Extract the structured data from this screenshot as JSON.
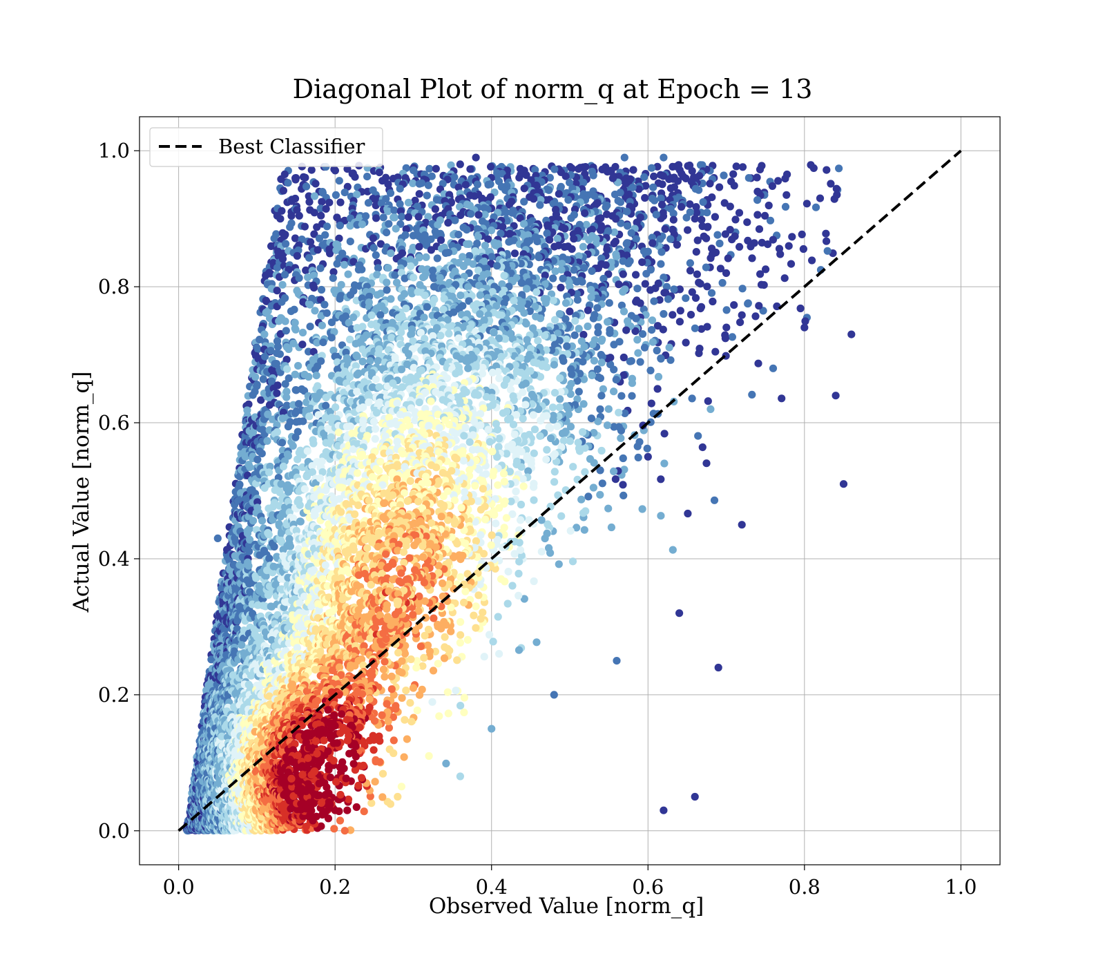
{
  "chart_data": {
    "type": "scatter",
    "title": "Diagonal Plot of norm_q at Epoch = 13",
    "xlabel": "Observed Value [norm_q]",
    "ylabel": "Actual Value [norm_q]",
    "xlim": [
      -0.05,
      1.05
    ],
    "ylim": [
      -0.05,
      1.05
    ],
    "xticks": [
      0.0,
      0.2,
      0.4,
      0.6,
      0.8,
      1.0
    ],
    "yticks": [
      0.0,
      0.2,
      0.4,
      0.6,
      0.8,
      1.0
    ],
    "xtick_labels": [
      "0.0",
      "0.2",
      "0.4",
      "0.6",
      "0.8",
      "1.0"
    ],
    "ytick_labels": [
      "0.0",
      "0.2",
      "0.4",
      "0.6",
      "0.8",
      "1.0"
    ],
    "grid": true,
    "legend": {
      "position": "top-left",
      "entries": [
        {
          "label": "Best Classifier",
          "style": "dashed",
          "color": "#000000"
        }
      ]
    },
    "reference_line": {
      "name": "Best Classifier",
      "x": [
        0.0,
        1.0
      ],
      "y": [
        0.0,
        1.0
      ],
      "color": "#000000",
      "style": "dashed"
    },
    "colormap": [
      "#313695",
      "#4575b4",
      "#74add1",
      "#abd9e9",
      "#e0f3f8",
      "#ffffbf",
      "#fee090",
      "#fdae61",
      "#f46d43",
      "#d73027",
      "#a50026"
    ],
    "colormap_name": "RdYlBu_r (point density)",
    "points": [
      {
        "x": 0.02,
        "y": 0.01
      },
      {
        "x": 0.04,
        "y": 0.03
      },
      {
        "x": 0.05,
        "y": 0.08
      },
      {
        "x": 0.07,
        "y": 0.02
      },
      {
        "x": 0.08,
        "y": 0.12
      },
      {
        "x": 0.1,
        "y": 0.05
      },
      {
        "x": 0.11,
        "y": 0.18
      },
      {
        "x": 0.12,
        "y": 0.09
      },
      {
        "x": 0.13,
        "y": 0.02
      },
      {
        "x": 0.14,
        "y": 0.22
      },
      {
        "x": 0.15,
        "y": 0.14
      },
      {
        "x": 0.16,
        "y": 0.06
      },
      {
        "x": 0.17,
        "y": 0.3
      },
      {
        "x": 0.18,
        "y": 0.1
      },
      {
        "x": 0.19,
        "y": 0.19
      },
      {
        "x": 0.2,
        "y": 0.03
      },
      {
        "x": 0.21,
        "y": 0.36
      },
      {
        "x": 0.22,
        "y": 0.13
      },
      {
        "x": 0.23,
        "y": 0.25
      },
      {
        "x": 0.24,
        "y": 0.07
      },
      {
        "x": 0.25,
        "y": 0.44
      },
      {
        "x": 0.26,
        "y": 0.17
      },
      {
        "x": 0.27,
        "y": 0.31
      },
      {
        "x": 0.28,
        "y": 0.05
      },
      {
        "x": 0.29,
        "y": 0.52
      },
      {
        "x": 0.3,
        "y": 0.21
      },
      {
        "x": 0.31,
        "y": 0.38
      },
      {
        "x": 0.32,
        "y": 0.11
      },
      {
        "x": 0.33,
        "y": 0.6
      },
      {
        "x": 0.34,
        "y": 0.27
      },
      {
        "x": 0.35,
        "y": 0.46
      },
      {
        "x": 0.36,
        "y": 0.08
      },
      {
        "x": 0.37,
        "y": 0.68
      },
      {
        "x": 0.38,
        "y": 0.33
      },
      {
        "x": 0.39,
        "y": 0.55
      },
      {
        "x": 0.4,
        "y": 0.15
      },
      {
        "x": 0.42,
        "y": 0.74
      },
      {
        "x": 0.44,
        "y": 0.4
      },
      {
        "x": 0.46,
        "y": 0.62
      },
      {
        "x": 0.48,
        "y": 0.2
      },
      {
        "x": 0.5,
        "y": 0.8
      },
      {
        "x": 0.52,
        "y": 0.47
      },
      {
        "x": 0.54,
        "y": 0.7
      },
      {
        "x": 0.56,
        "y": 0.25
      },
      {
        "x": 0.58,
        "y": 0.86
      },
      {
        "x": 0.6,
        "y": 0.55
      },
      {
        "x": 0.62,
        "y": 0.76
      },
      {
        "x": 0.64,
        "y": 0.32
      },
      {
        "x": 0.66,
        "y": 0.9
      },
      {
        "x": 0.68,
        "y": 0.62
      },
      {
        "x": 0.7,
        "y": 0.82
      },
      {
        "x": 0.72,
        "y": 0.45
      },
      {
        "x": 0.74,
        "y": 0.94
      },
      {
        "x": 0.76,
        "y": 0.68
      },
      {
        "x": 0.78,
        "y": 0.86
      },
      {
        "x": 0.8,
        "y": 0.74
      },
      {
        "x": 0.82,
        "y": 0.93
      },
      {
        "x": 0.84,
        "y": 0.64
      },
      {
        "x": 0.85,
        "y": 0.51
      },
      {
        "x": 0.86,
        "y": 0.73
      },
      {
        "x": 0.13,
        "y": 0.9
      },
      {
        "x": 0.15,
        "y": 0.96
      },
      {
        "x": 0.1,
        "y": 0.71
      },
      {
        "x": 0.12,
        "y": 0.68
      },
      {
        "x": 0.05,
        "y": 0.43
      },
      {
        "x": 0.66,
        "y": 0.05
      },
      {
        "x": 0.62,
        "y": 0.03
      },
      {
        "x": 0.69,
        "y": 0.24
      },
      {
        "x": 0.57,
        "y": 0.99
      },
      {
        "x": 0.62,
        "y": 0.99
      },
      {
        "x": 0.38,
        "y": 0.99
      },
      {
        "x": 0.29,
        "y": 0.96
      }
    ]
  }
}
